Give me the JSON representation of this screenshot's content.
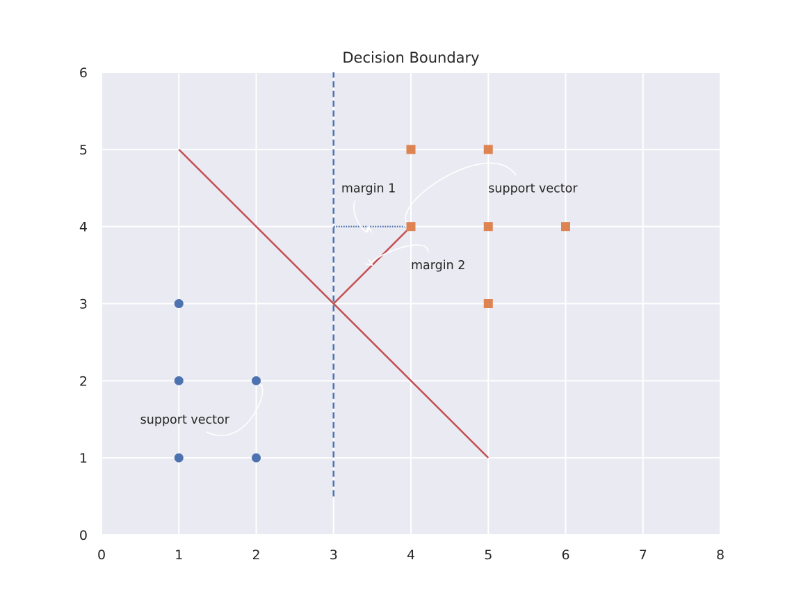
{
  "chart_data": {
    "type": "scatter",
    "title": "Decision Boundary",
    "xlabel": "",
    "ylabel": "",
    "xlim": [
      0,
      8
    ],
    "ylim": [
      0,
      6
    ],
    "xticks": [
      "0",
      "1",
      "2",
      "3",
      "4",
      "5",
      "6",
      "7",
      "8"
    ],
    "yticks": [
      "0",
      "1",
      "2",
      "3",
      "4",
      "5",
      "6"
    ],
    "grid": true,
    "background": "#eaeaf2",
    "series": [
      {
        "marker": "circle",
        "color": "#4c72b0",
        "points": [
          [
            1,
            1
          ],
          [
            1,
            2
          ],
          [
            1,
            3
          ],
          [
            2,
            1
          ],
          [
            2,
            2
          ]
        ]
      },
      {
        "marker": "square",
        "color": "#dd8452",
        "points": [
          [
            4,
            4
          ],
          [
            4,
            5
          ],
          [
            5,
            3
          ],
          [
            5,
            4
          ],
          [
            5,
            5
          ],
          [
            6,
            4
          ]
        ]
      }
    ],
    "lines": [
      {
        "style": "solid",
        "color": "#c44e52",
        "points": [
          [
            1,
            5
          ],
          [
            5,
            1
          ]
        ]
      },
      {
        "style": "solid",
        "color": "#c44e52",
        "points": [
          [
            3,
            3
          ],
          [
            4,
            4
          ]
        ]
      },
      {
        "style": "dashed",
        "color": "#4c72b0",
        "points": [
          [
            3,
            0.5
          ],
          [
            3,
            6
          ]
        ]
      },
      {
        "style": "dotted",
        "color": "#4c72b0",
        "points": [
          [
            3,
            4
          ],
          [
            4,
            4
          ]
        ]
      }
    ],
    "annotations": [
      {
        "text": "margin 1",
        "text_at": [
          3.1,
          4.5
        ],
        "arrow_to": [
          3.45,
          4.0
        ]
      },
      {
        "text": "margin 2",
        "text_at": [
          4.0,
          3.5
        ],
        "arrow_to": [
          3.5,
          3.5
        ]
      },
      {
        "text": "support vector",
        "text_at": [
          5.0,
          4.5
        ],
        "arrow_to": [
          4.0,
          4.0
        ]
      },
      {
        "text": "support vector",
        "text_at": [
          0.5,
          1.5
        ],
        "arrow_to": [
          2.0,
          1.95
        ]
      }
    ]
  }
}
